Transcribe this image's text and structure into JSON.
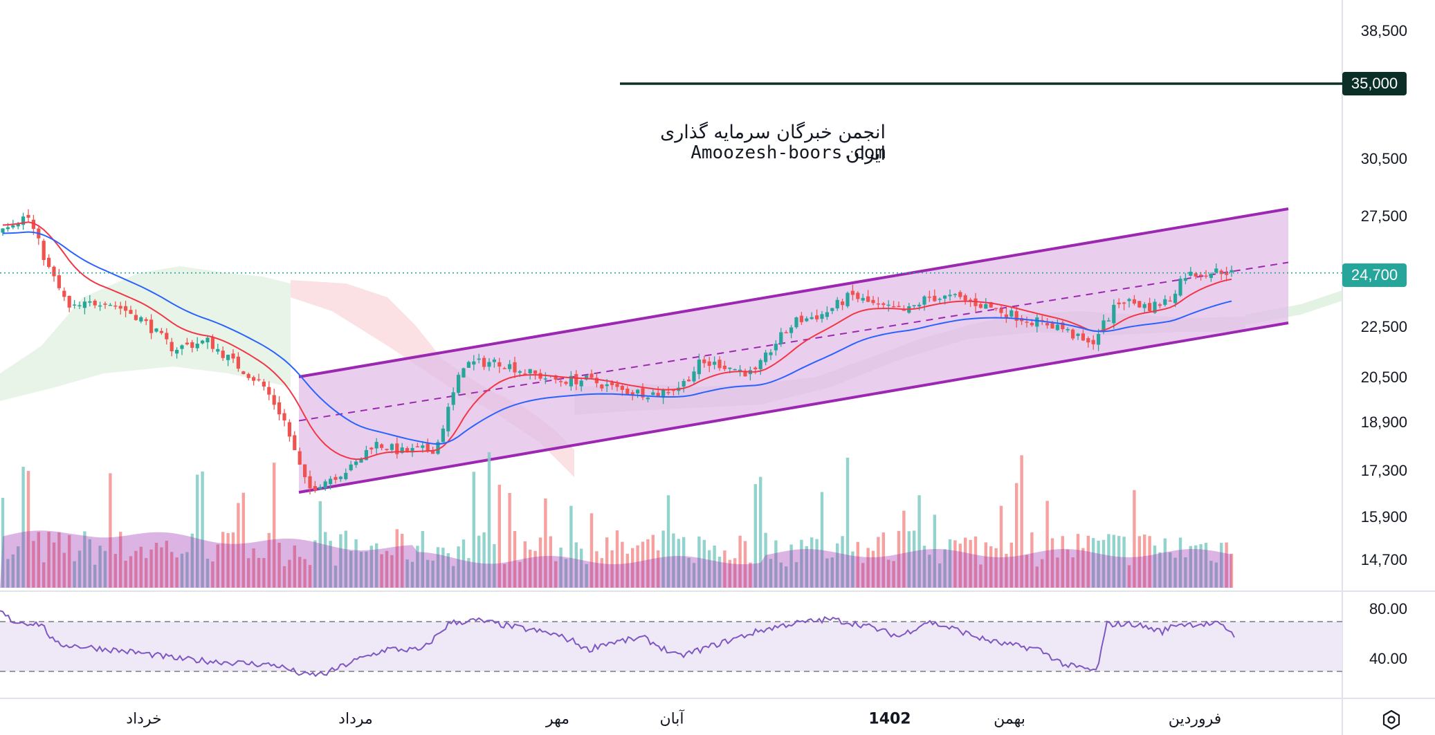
{
  "chart_data": {
    "type": "candlestick",
    "price_axis": {
      "ticks": [
        "38,500",
        "30,500",
        "27,500",
        "22,500",
        "20,500",
        "18,900",
        "17,300",
        "15,900",
        "14,700"
      ],
      "scale": "log"
    },
    "horizontal_line": {
      "value": 35000,
      "label": "35,000",
      "color": "#0b2e26"
    },
    "last_price": {
      "value": 24700,
      "label": "24,700",
      "color": "#26a69a"
    },
    "time_axis": [
      "خرداد",
      "مرداد",
      "مهر",
      "آبان",
      "1402",
      "بهمن",
      "فروردین"
    ],
    "rsi": {
      "ticks": [
        "80.00",
        "40.00"
      ],
      "upper": 70,
      "lower": 30
    },
    "channel": {
      "upper_line": {
        "start_value": 20900,
        "end_value": 27900
      },
      "lower_line": {
        "start_value": 16300,
        "end_value": 22500
      },
      "midline_dashed": true,
      "color": "#9c27b0"
    },
    "indicators": [
      "EMA (red)",
      "EMA (blue)",
      "Ichimoku cloud",
      "Volume with MA",
      "RSI"
    ],
    "colors": {
      "up": "#26a69a",
      "down": "#ef5350",
      "ema_fast": "#f23645",
      "ema_slow": "#2962ff",
      "rsi": "#7e57c2"
    }
  },
  "watermark": {
    "line1": "انجمن خبرگان سرمایه گذاری ایران",
    "line2": "Amoozesh-boors.com"
  },
  "icons": {
    "settings": "settings-icon"
  }
}
